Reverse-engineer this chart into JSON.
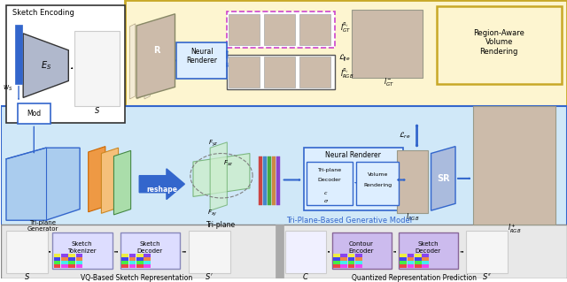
{
  "fig_width": 6.4,
  "fig_height": 3.19,
  "dpi": 100,
  "bg_color": "#ffffff",
  "vq_label": "VQ-Based Sketch Representation",
  "qrp_label": "Quantized Representation Prediction",
  "tri_plane_gen_label": "Tri-Plane-Based Generative Model",
  "colors": {
    "blue": "#3366cc",
    "light_blue": "#aaccee",
    "yellow_bg": "#fdf5d0",
    "gold_border": "#c8a827",
    "mid_blue_bg": "#d0e8f8",
    "dark_blue": "#1144aa"
  }
}
